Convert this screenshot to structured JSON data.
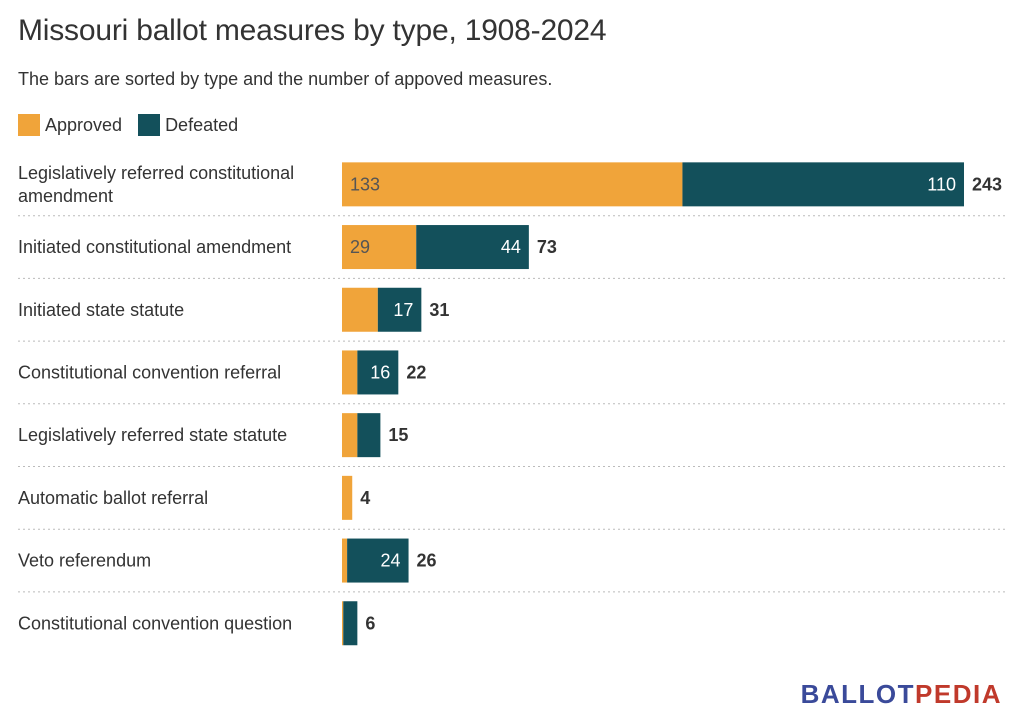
{
  "title": "Missouri ballot measures by type, 1908-2024",
  "subtitle": "The bars are sorted by type and the number of appoved measures.",
  "legend": [
    {
      "label": "Approved",
      "color": "#f0a43a"
    },
    {
      "label": "Defeated",
      "color": "#13505b"
    }
  ],
  "logo": {
    "part1": "BALLOT",
    "part2": "PEDIA"
  },
  "chart_data": {
    "type": "bar",
    "orientation": "horizontal",
    "stacked": true,
    "categories": [
      "Legislatively referred constitutional amendment",
      "Initiated constitutional amendment",
      "Initiated state statute",
      "Constitutional convention referral",
      "Legislatively referred state statute",
      "Automatic ballot referral",
      "Veto referendum",
      "Constitutional convention question"
    ],
    "category_lines": [
      [
        "Legislatively referred constitutional",
        "amendment"
      ],
      [
        "Initiated constitutional amendment"
      ],
      [
        "Initiated state statute"
      ],
      [
        "Constitutional convention referral"
      ],
      [
        "Legislatively referred state statute"
      ],
      [
        "Automatic ballot referral"
      ],
      [
        "Veto referendum"
      ],
      [
        "Constitutional convention question"
      ]
    ],
    "series": [
      {
        "name": "Approved",
        "color": "#f0a43a",
        "label_color": "#555555",
        "values": [
          133,
          29,
          14,
          6,
          6,
          4,
          2,
          0.5
        ],
        "show_label": [
          true,
          true,
          false,
          false,
          false,
          false,
          false,
          false
        ]
      },
      {
        "name": "Defeated",
        "color": "#13505b",
        "label_color": "#ffffff",
        "values": [
          110,
          44,
          17,
          16,
          9,
          0,
          24,
          5.5
        ],
        "show_label": [
          true,
          true,
          true,
          true,
          false,
          false,
          true,
          false
        ]
      }
    ],
    "totals": [
      243,
      73,
      31,
      22,
      15,
      4,
      26,
      6
    ],
    "xlim": [
      0,
      243
    ],
    "grid": "horizontal dotted separators between rows",
    "legend_position": "top-left"
  }
}
